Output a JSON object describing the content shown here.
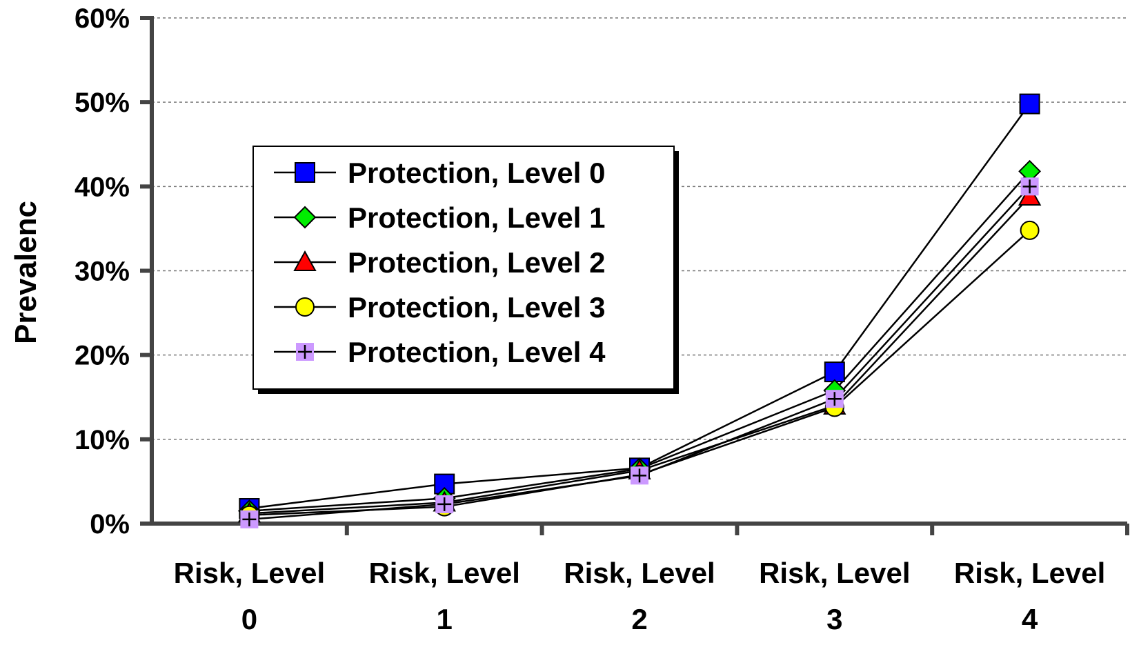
{
  "chart_data": {
    "type": "line",
    "title": "",
    "xlabel": "",
    "ylabel": "Prevalenc",
    "ylim": [
      0,
      60
    ],
    "y_tick_labels": [
      "0%",
      "10%",
      "20%",
      "30%",
      "40%",
      "50%",
      "60%"
    ],
    "grid": "horizontal dashed",
    "legend_position": "upper-left inside plot",
    "categories": [
      {
        "line1": "Risk, Level",
        "line2": "0"
      },
      {
        "line1": "Risk, Level",
        "line2": "1"
      },
      {
        "line1": "Risk, Level",
        "line2": "2"
      },
      {
        "line1": "Risk, Level",
        "line2": "3"
      },
      {
        "line1": "Risk, Level",
        "line2": "4"
      }
    ],
    "series": [
      {
        "name": "Protection, Level 0",
        "marker": "square",
        "color": "#0000ff",
        "values": [
          1.8,
          4.7,
          6.6,
          18.0,
          49.8
        ]
      },
      {
        "name": "Protection, Level 1",
        "marker": "diamond",
        "color": "#00ee00",
        "values": [
          1.5,
          3.0,
          6.5,
          15.8,
          41.8
        ]
      },
      {
        "name": "Protection, Level 2",
        "marker": "triangle",
        "color": "#ff0000",
        "values": [
          1.2,
          2.5,
          6.3,
          14.0,
          38.8
        ]
      },
      {
        "name": "Protection, Level 3",
        "marker": "circle",
        "color": "#ffff00",
        "values": [
          1.0,
          2.0,
          5.8,
          13.8,
          34.8
        ]
      },
      {
        "name": "Protection, Level 4",
        "marker": "plus",
        "color": "#cc99ff",
        "values": [
          0.5,
          2.3,
          5.7,
          14.8,
          40.0
        ]
      }
    ]
  }
}
